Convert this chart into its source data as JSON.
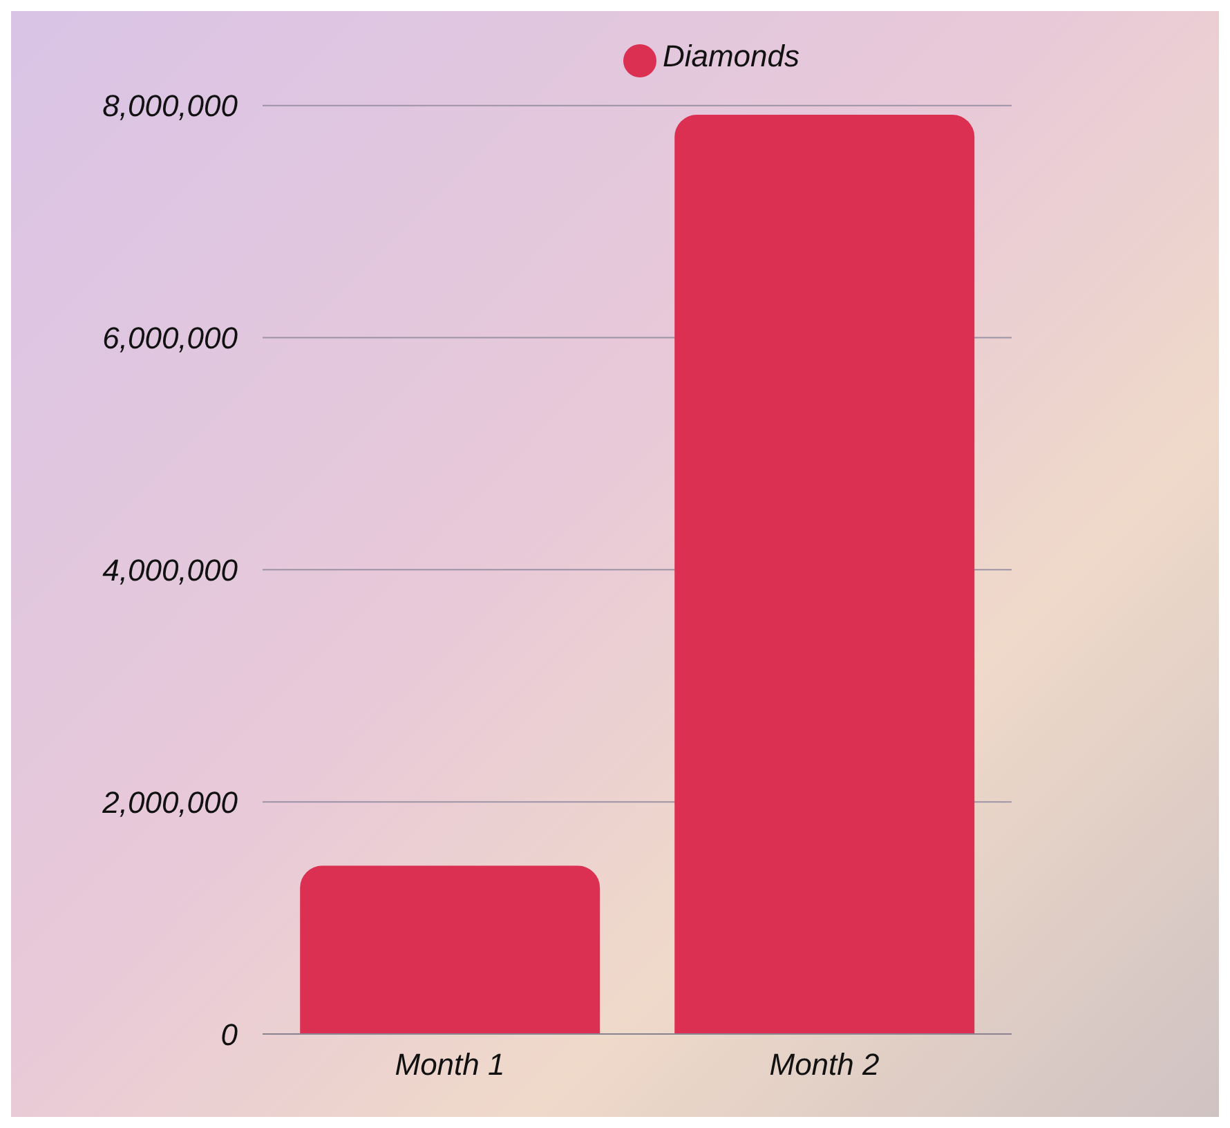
{
  "chart_data": {
    "type": "bar",
    "categories": [
      "Month 1",
      "Month 2"
    ],
    "series": [
      {
        "name": "Diamonds",
        "color": "#dc3053",
        "values": [
          1450000,
          7920000
        ]
      }
    ],
    "ylim": [
      0,
      8000000
    ],
    "yticks": [
      {
        "value": 0,
        "label": "0"
      },
      {
        "value": 2000000,
        "label": "2,000,000"
      },
      {
        "value": 4000000,
        "label": "4,000,000"
      },
      {
        "value": 6000000,
        "label": "6,000,000"
      },
      {
        "value": 8000000,
        "label": "8,000,000"
      }
    ],
    "grid": "y",
    "legend": "top"
  }
}
